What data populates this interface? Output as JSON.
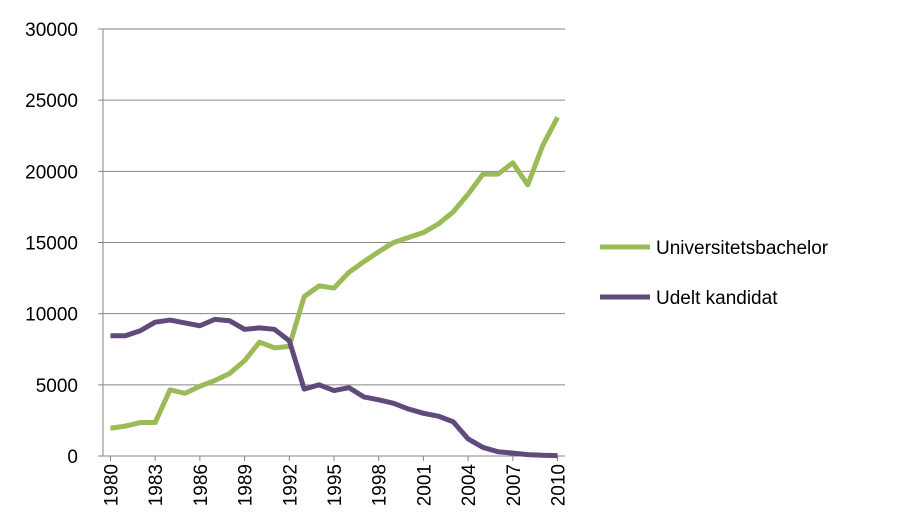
{
  "chart_data": {
    "type": "line",
    "x": [
      1980,
      1981,
      1982,
      1983,
      1984,
      1985,
      1986,
      1987,
      1988,
      1989,
      1990,
      1991,
      1992,
      1993,
      1994,
      1995,
      1996,
      1997,
      1998,
      1999,
      2000,
      2001,
      2002,
      2003,
      2004,
      2005,
      2006,
      2007,
      2008,
      2009,
      2010
    ],
    "series": [
      {
        "name": "Universitetsbachelor",
        "color": "#9bbb59",
        "values": [
          1950,
          2100,
          2350,
          2350,
          4650,
          4400,
          4900,
          5300,
          5800,
          6700,
          8000,
          7600,
          7700,
          11200,
          11950,
          11800,
          12900,
          13650,
          14350,
          15000,
          15350,
          15700,
          16300,
          17150,
          18400,
          19800,
          19800,
          20600,
          19050,
          21800,
          23800
        ]
      },
      {
        "name": "Udelt kandidat",
        "color": "#604a7b",
        "values": [
          8450,
          8450,
          8800,
          9400,
          9550,
          9350,
          9150,
          9600,
          9500,
          8900,
          9000,
          8900,
          8100,
          4700,
          5000,
          4600,
          4800,
          4150,
          3950,
          3700,
          3300,
          3000,
          2800,
          2400,
          1200,
          600,
          300,
          200,
          100,
          50,
          30
        ]
      }
    ],
    "xlim": [
      1979.5,
      2010.5
    ],
    "xticks": [
      1980,
      1983,
      1986,
      1989,
      1992,
      1995,
      1998,
      2001,
      2004,
      2007,
      2010
    ],
    "ylim": [
      0,
      30000
    ],
    "yticks": [
      0,
      5000,
      10000,
      15000,
      20000,
      25000,
      30000
    ],
    "grid": true,
    "legend": "right"
  }
}
